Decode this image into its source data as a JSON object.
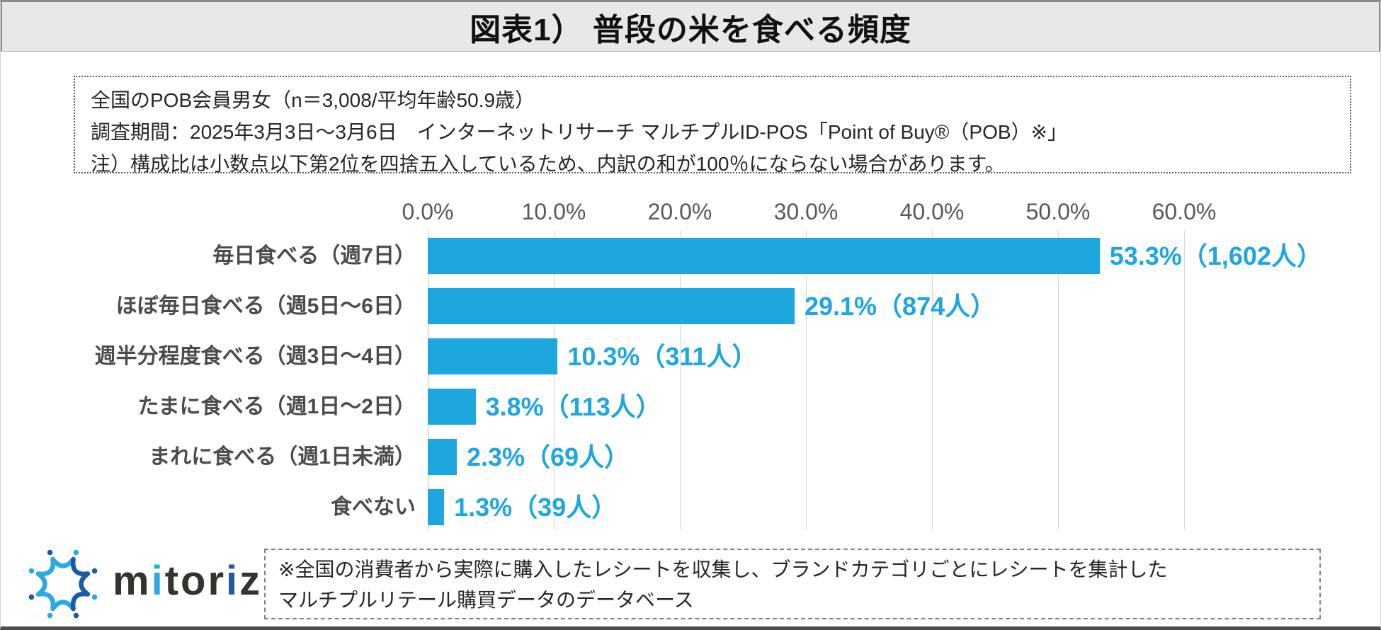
{
  "header": {
    "title": "図表1） 普段の米を食べる頻度"
  },
  "survey_note": {
    "lines": [
      "全国のPOB会員男女（n＝3,008/平均年齢50.9歳）",
      "調査期間：2025年3月3日～3月6日　インターネットリサーチ マルチプルID-POS「Point of Buy®（POB）※」",
      "注）構成比は小数点以下第2位を四捨五入しているため、内訳の和が100％にならない場合があります。"
    ]
  },
  "chart_data": {
    "type": "bar",
    "orientation": "horizontal",
    "title": "普段の米を食べる頻度",
    "categories": [
      "毎日食べる（週7日）",
      "ほぼ毎日食べる（週5日～6日）",
      "週半分程度食べる（週3日～4日）",
      "たまに食べる（週1日～2日）",
      "まれに食べる（週1日未満）",
      "食べない"
    ],
    "values": [
      53.3,
      29.1,
      10.3,
      3.8,
      2.3,
      1.3
    ],
    "counts": [
      1602,
      874,
      311,
      113,
      69,
      39
    ],
    "data_labels": [
      "53.3%（1,602人）",
      "29.1%（874人）",
      "10.3%（311人）",
      "3.8%（113人）",
      "2.3%（69人）",
      "1.3%（39人）"
    ],
    "x_ticks": [
      "0.0%",
      "10.0%",
      "20.0%",
      "30.0%",
      "40.0%",
      "50.0%",
      "60.0%"
    ],
    "xlim": [
      0,
      60
    ],
    "grid": true,
    "legend": false,
    "bar_color": "#1EA6DF"
  },
  "brand": {
    "name": "mitoriz",
    "light_blue": "#29ABE2",
    "dark_blue": "#1C5AA5"
  },
  "footer_note": {
    "lines": [
      "※全国の消費者から実際に購入したレシートを収集し、ブランドカテゴリごとにレシートを集計した",
      "マルチプルリテール購買データのデータベース"
    ]
  }
}
